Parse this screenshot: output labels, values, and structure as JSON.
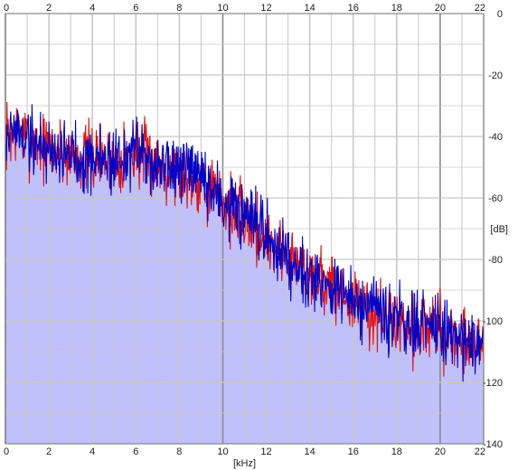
{
  "chart_data": {
    "type": "area",
    "xlabel": "[kHz]",
    "ylabel": "[dB]",
    "xlim": [
      0,
      22
    ],
    "ylim": [
      -140,
      0
    ],
    "x_ticks": [
      "0",
      "2",
      "4",
      "6",
      "8",
      "10",
      "12",
      "14",
      "16",
      "18",
      "20",
      "22"
    ],
    "y_ticks": [
      "0",
      "-20",
      "-40",
      "-60",
      "-80",
      "-100",
      "-120",
      "-140"
    ],
    "grid": true,
    "colors": {
      "fill": "#c0c0fb",
      "series_red": "#e01010",
      "series_blue": "#0000c8",
      "grid": "#c8c8c8",
      "major_grid": "#8a8a8a"
    },
    "trend_kHz": [
      0,
      0.5,
      1,
      2,
      3,
      4,
      5,
      6,
      7,
      8,
      9,
      10,
      11,
      12,
      13,
      14,
      15,
      16,
      17,
      18,
      19,
      20,
      21,
      22
    ],
    "trend_dB": [
      -40,
      -38,
      -41,
      -44,
      -46,
      -47,
      -48,
      -45,
      -49,
      -51,
      -54,
      -61,
      -67,
      -73,
      -79,
      -84,
      -89,
      -94,
      -98,
      -100,
      -102,
      -103,
      -106,
      -107
    ],
    "series": [
      {
        "color_key": "series_red",
        "seed": 7,
        "spread": 5.5
      },
      {
        "color_key": "series_blue",
        "seed": 19,
        "spread": 5.5
      }
    ]
  }
}
